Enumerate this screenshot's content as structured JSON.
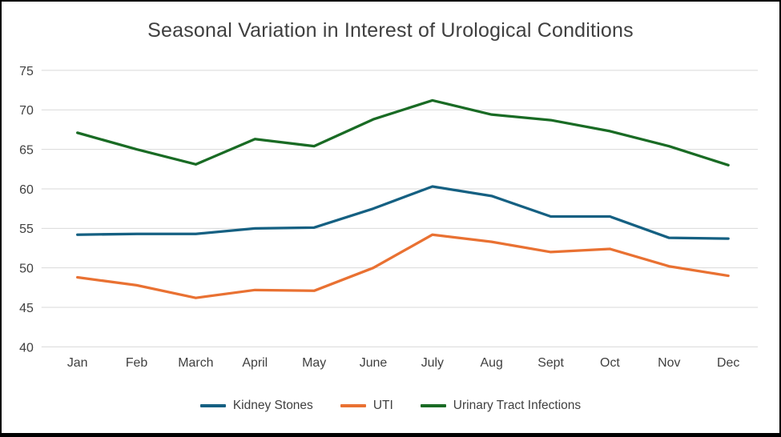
{
  "title": "Seasonal Variation in Interest of Urological Conditions",
  "chart_data": {
    "type": "line",
    "title": "Seasonal Variation in Interest of Urological Conditions",
    "categories": [
      "Jan",
      "Feb",
      "March",
      "April",
      "May",
      "June",
      "July",
      "Aug",
      "Sept",
      "Oct",
      "Nov",
      "Dec"
    ],
    "series": [
      {
        "name": "Kidney Stones",
        "color": "#156082",
        "values": [
          54.2,
          54.3,
          54.3,
          55.0,
          55.1,
          57.5,
          60.3,
          59.1,
          56.5,
          56.5,
          53.8,
          53.7
        ]
      },
      {
        "name": "UTI",
        "color": "#E97132",
        "values": [
          48.8,
          47.8,
          46.2,
          47.2,
          47.1,
          50.0,
          54.2,
          53.3,
          52.0,
          52.4,
          50.2,
          49.0
        ]
      },
      {
        "name": "Urinary Tract Infections",
        "color": "#196B24",
        "values": [
          67.1,
          65.0,
          63.1,
          66.3,
          65.4,
          68.8,
          71.2,
          69.4,
          68.7,
          67.3,
          65.4,
          63.0
        ]
      }
    ],
    "xlabel": "",
    "ylabel": "",
    "ylim": [
      40,
      75
    ],
    "ytick_step": 5,
    "grid": true,
    "legend_position": "bottom"
  }
}
